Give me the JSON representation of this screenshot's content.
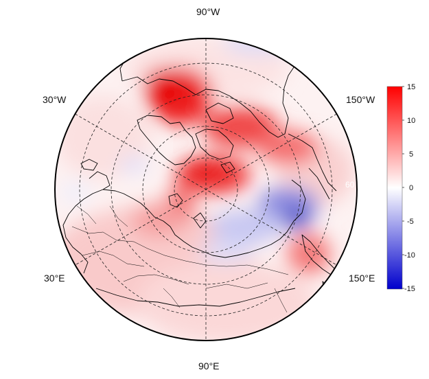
{
  "map": {
    "projection": "north-polar-stereographic",
    "longitude_labels": [
      {
        "id": "lon-90w",
        "text": "90°W"
      },
      {
        "id": "lon-30w",
        "text": "30°W"
      },
      {
        "id": "lon-150w",
        "text": "150°W"
      },
      {
        "id": "lon-30e",
        "text": "30°E"
      },
      {
        "id": "lon-150e",
        "text": "150°E"
      },
      {
        "id": "lon-90e",
        "text": "90°E"
      }
    ],
    "inner_latitude_label": "60",
    "anomaly_field": "red-white-blue shaded anomaly"
  },
  "colorbar": {
    "min": -15,
    "max": 15,
    "ticks": [
      "15",
      "10",
      "5",
      "0",
      "-5",
      "-10",
      "-15"
    ],
    "colors": {
      "max": "#ff0000",
      "mid": "#ffffff",
      "min": "#0000cc"
    }
  }
}
